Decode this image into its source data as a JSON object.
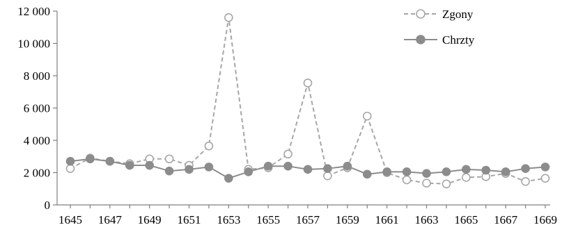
{
  "chart_data": {
    "type": "line",
    "x": [
      1645,
      1646,
      1647,
      1648,
      1649,
      1650,
      1651,
      1652,
      1653,
      1654,
      1655,
      1656,
      1657,
      1658,
      1659,
      1660,
      1661,
      1662,
      1663,
      1664,
      1665,
      1666,
      1667,
      1668,
      1669
    ],
    "x_tick_labels": [
      "1645",
      "1647",
      "1649",
      "1651",
      "1653",
      "1655",
      "1657",
      "1659",
      "1661",
      "1663",
      "1665",
      "1667",
      "1669"
    ],
    "y_tick_labels": [
      "0",
      "2 000",
      "4 000",
      "6 000",
      "8 000",
      "10 000",
      "12 000"
    ],
    "ylim": [
      0,
      12000
    ],
    "grid": false,
    "legend_position": "top-right",
    "series": [
      {
        "name": "Zgony",
        "style": "dashed-open-circle",
        "color": "#a6a6a6",
        "values": [
          2250,
          2900,
          2700,
          2550,
          2850,
          2850,
          2450,
          3650,
          11600,
          2200,
          2300,
          3150,
          7550,
          1800,
          2300,
          5500,
          2000,
          1550,
          1350,
          1300,
          1700,
          1750,
          1950,
          1450,
          1650
        ]
      },
      {
        "name": "Chrzty",
        "style": "solid-filled-circle",
        "color": "#8c8c8c",
        "values": [
          2700,
          2850,
          2700,
          2450,
          2450,
          2100,
          2200,
          2350,
          1650,
          2050,
          2400,
          2400,
          2200,
          2250,
          2400,
          1900,
          2050,
          2050,
          1950,
          2050,
          2200,
          2150,
          2050,
          2250,
          2350
        ]
      }
    ],
    "title": "",
    "xlabel": "",
    "ylabel": ""
  }
}
